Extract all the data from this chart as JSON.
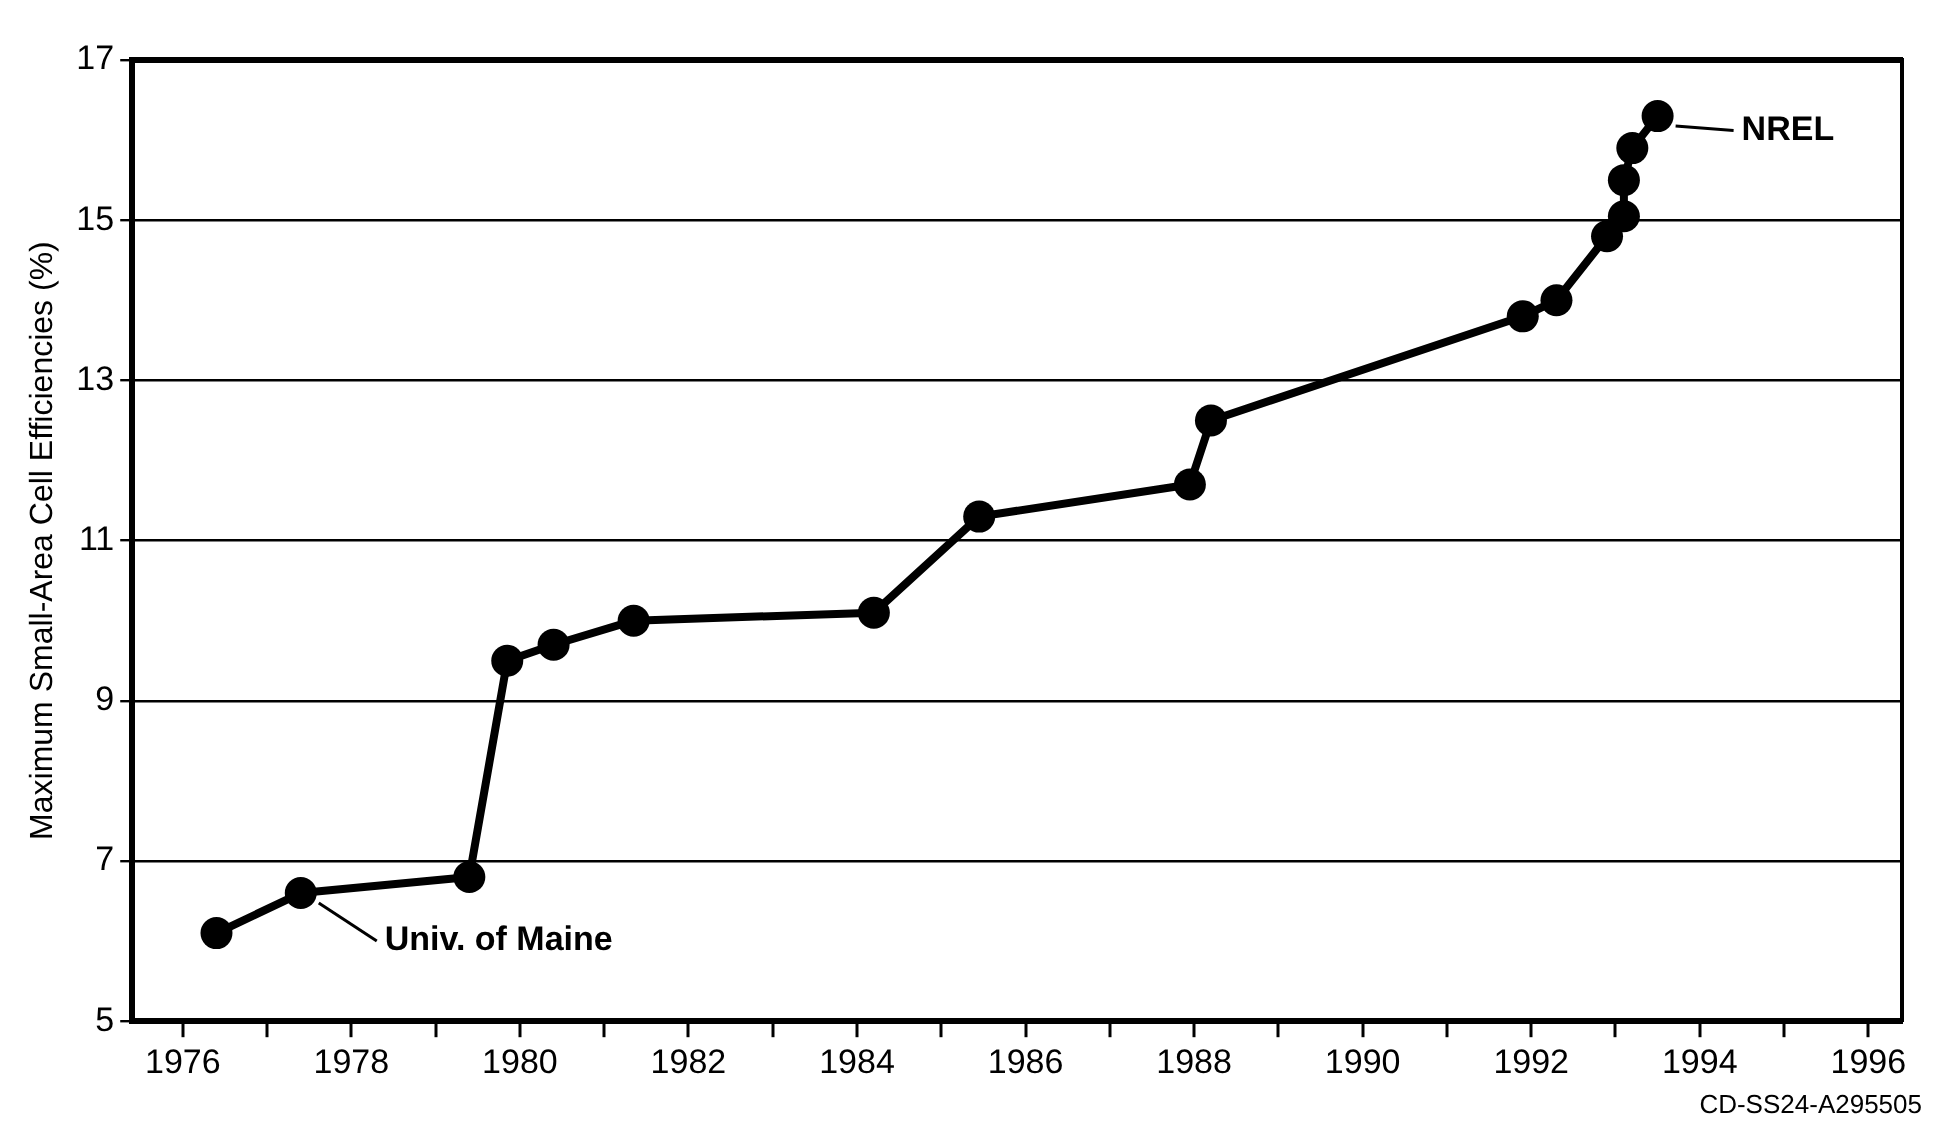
{
  "chart_data": {
    "type": "line",
    "ylabel": "Maximum Small-Area Cell Efficiencies (%)",
    "x": [
      1976.4,
      1977.4,
      1979.4,
      1979.85,
      1980.4,
      1981.35,
      1984.2,
      1985.45,
      1987.95,
      1988.2,
      1991.9,
      1992.3,
      1992.9,
      1993.1,
      1993.1,
      1993.2,
      1993.5
    ],
    "series": [
      {
        "color": "#000000",
        "values": [
          6.1,
          6.6,
          6.8,
          9.5,
          9.7,
          10.0,
          10.1,
          11.3,
          11.7,
          12.5,
          13.8,
          14.0,
          14.8,
          15.05,
          15.5,
          15.9,
          16.3
        ]
      }
    ],
    "xlim": [
      1975.4,
      1996.4
    ],
    "xticks": [
      1976,
      {
        "value": 1977,
        "label": null
      },
      1978,
      {
        "value": 1979,
        "label": null
      },
      1980,
      {
        "value": 1981,
        "label": null
      },
      1982,
      {
        "value": 1983,
        "label": null
      },
      1984,
      {
        "value": 1985,
        "label": null
      },
      1986,
      {
        "value": 1987,
        "label": null
      },
      1988,
      {
        "value": 1989,
        "label": null
      },
      1990,
      {
        "value": 1991,
        "label": null
      },
      1992,
      {
        "value": 1993,
        "label": null
      },
      1994,
      {
        "value": 1995,
        "label": null
      },
      1996
    ],
    "ylim": [
      5,
      17
    ],
    "yticks": [
      5,
      7,
      9,
      11,
      13,
      15,
      17
    ],
    "grid": "y",
    "legend": false,
    "marker": "circle",
    "line_style": "solid",
    "annotations": [
      {
        "text": "Univ. of Maine",
        "x": 1977.4,
        "y": 6.6
      },
      {
        "text": "NREL",
        "x": 1993.5,
        "y": 16.3
      },
      "CD-SS24-A295505"
    ]
  }
}
